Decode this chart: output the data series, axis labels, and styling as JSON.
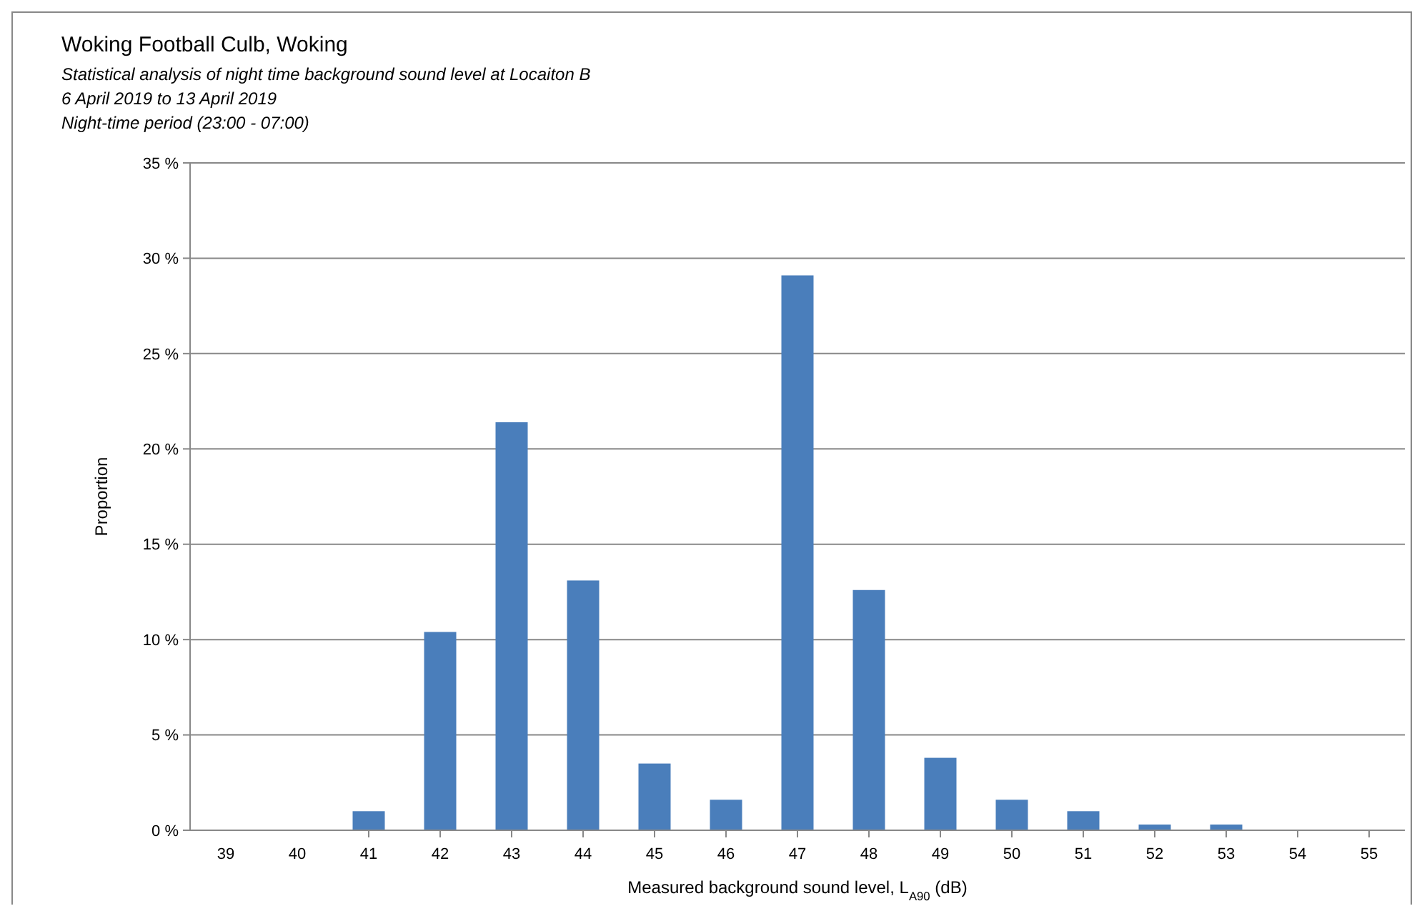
{
  "chart_data": {
    "type": "bar",
    "title": "Woking Football Culb, Woking",
    "subtitle": "Statistical analysis of night time background sound level at Locaiton B\n6 April 2019 to 13 April 2019\nNight-time period (23:00 - 07:00)",
    "xlabel": "Measured background sound level, L$_{A90}$ (dB)",
    "ylabel": "Proportion",
    "categories": [
      "39",
      "40",
      "41",
      "42",
      "43",
      "44",
      "45",
      "46",
      "47",
      "48",
      "49",
      "50",
      "51",
      "52",
      "53",
      "54",
      "55"
    ],
    "values": [
      0,
      0,
      1.0,
      10.4,
      21.4,
      13.1,
      3.5,
      1.6,
      29.1,
      12.6,
      3.8,
      1.6,
      1.0,
      0.3,
      0.3,
      0,
      0
    ],
    "color": "#4a7ebb",
    "ylim": [
      0,
      35
    ],
    "yticks": [
      {
        "value": 0,
        "label": "0 %"
      },
      {
        "value": 5,
        "label": "5 %"
      },
      {
        "value": 10,
        "label": "10 %"
      },
      {
        "value": 15,
        "label": "15 %"
      },
      {
        "value": 20,
        "label": "20 %"
      },
      {
        "value": 25,
        "label": "25 %"
      },
      {
        "value": 30,
        "label": "30 %"
      },
      {
        "value": 35,
        "label": "35 %"
      }
    ],
    "grid": "y"
  }
}
